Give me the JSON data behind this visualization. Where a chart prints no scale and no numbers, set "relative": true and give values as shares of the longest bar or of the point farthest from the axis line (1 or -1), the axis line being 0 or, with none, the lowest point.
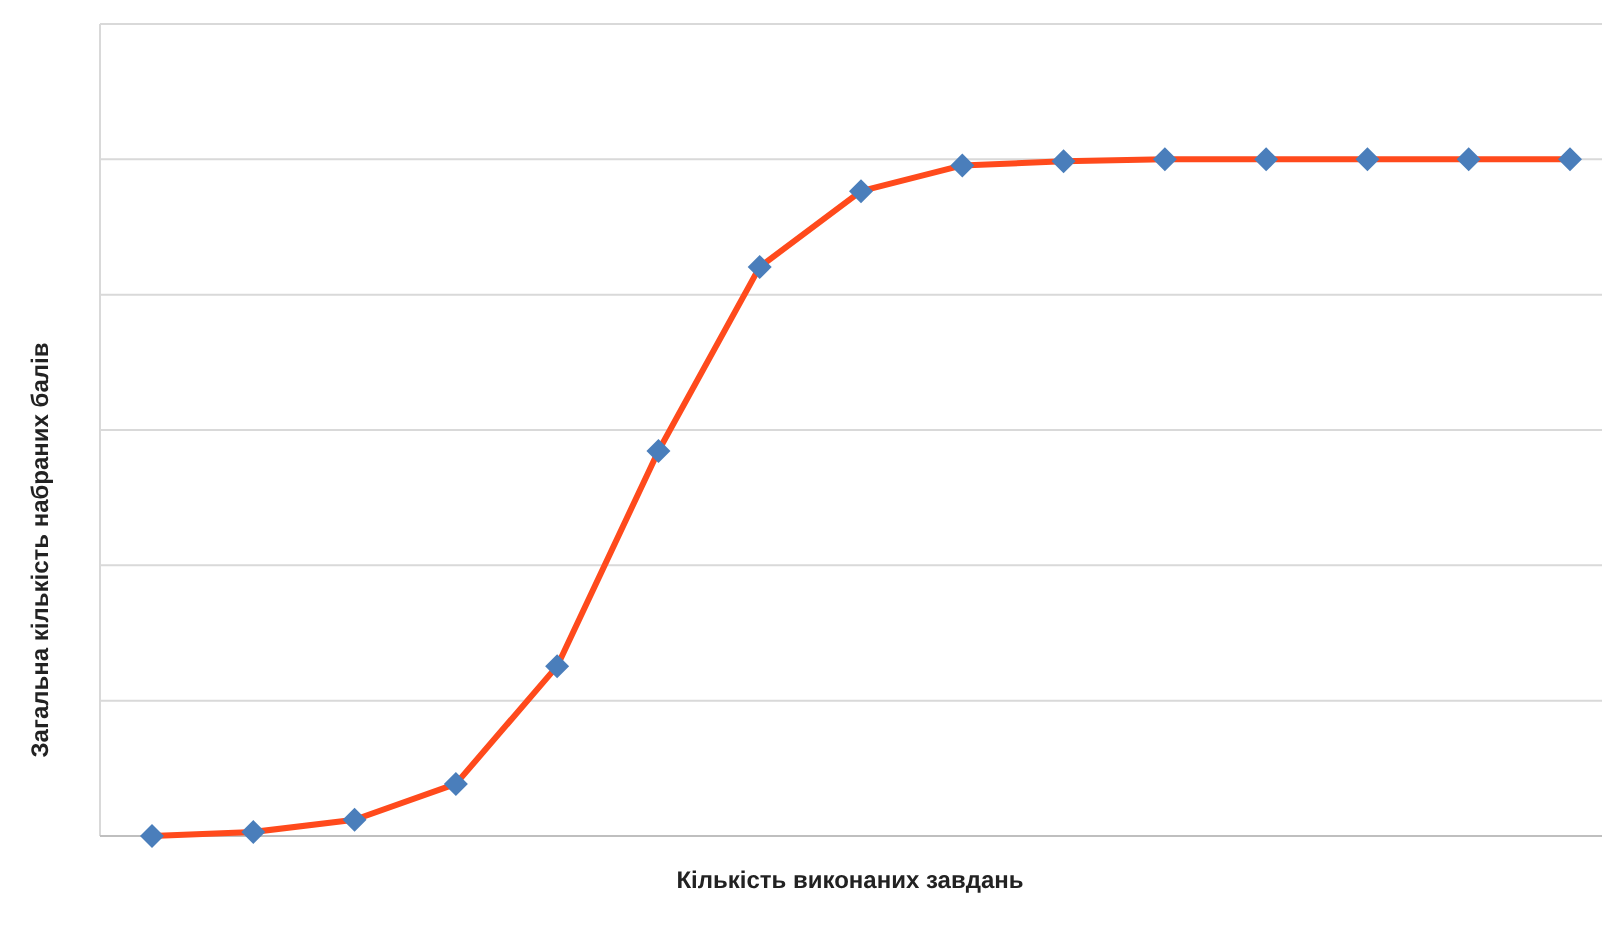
{
  "chart_data": {
    "type": "line",
    "xlabel": "Кількість виконаних завдань",
    "ylabel": "Загальна кількість набраних балів",
    "relative": true,
    "grid": "y",
    "marker": "diamond",
    "line_style": "solid",
    "categories": [
      null,
      null,
      null,
      null,
      null,
      null,
      null,
      null,
      null,
      null,
      null,
      null,
      null,
      null,
      null
    ],
    "series": [
      {
        "color": "#ff4a1c",
        "colors": [
          "#4a7ebb",
          "#4a7ebb",
          "#4a7ebb",
          "#4a7ebb",
          "#4a7ebb",
          "#4a7ebb",
          "#4a7ebb",
          "#4a7ebb",
          "#4a7ebb",
          "#4a7ebb",
          "#4a7ebb",
          "#4a7ebb",
          "#4a7ebb",
          "#4a7ebb",
          "#4a7ebb"
        ],
        "values": [
          0,
          0.006,
          0.024,
          0.077,
          0.251,
          0.569,
          0.841,
          0.953,
          0.991,
          0.997,
          1,
          1,
          1,
          1,
          1
        ]
      }
    ]
  }
}
